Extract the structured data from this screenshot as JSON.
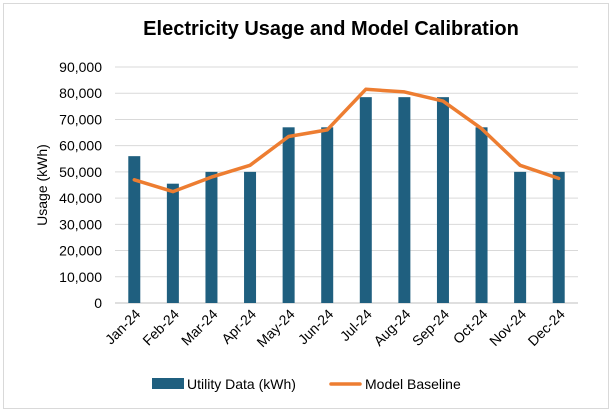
{
  "chart_data": {
    "type": "bar",
    "title": "Electricity Usage and Model Calibration",
    "xlabel": "",
    "ylabel": "Usage (kWh)",
    "ylim": [
      0,
      90000
    ],
    "yticks": [
      "0",
      "10,000",
      "20,000",
      "30,000",
      "40,000",
      "50,000",
      "60,000",
      "70,000",
      "80,000",
      "90,000"
    ],
    "categories": [
      "Jan-24",
      "Feb-24",
      "Mar-24",
      "Apr-24",
      "May-24",
      "Jun-24",
      "Jul-24",
      "Aug-24",
      "Sep-24",
      "Oct-24",
      "Nov-24",
      "Dec-24"
    ],
    "grid": true,
    "legend_position": "bottom",
    "series": [
      {
        "name": "Utility Data (kWh)",
        "type": "bar",
        "color": "#1f5f7f",
        "values": [
          56000,
          45500,
          50000,
          50000,
          67000,
          67000,
          78500,
          78500,
          78500,
          67000,
          50000,
          50000
        ]
      },
      {
        "name": "Model Baseline",
        "type": "line",
        "color": "#ed7d31",
        "values": [
          47000,
          42500,
          48000,
          52500,
          63500,
          66000,
          81500,
          80500,
          77000,
          66500,
          52500,
          47500
        ]
      }
    ]
  }
}
